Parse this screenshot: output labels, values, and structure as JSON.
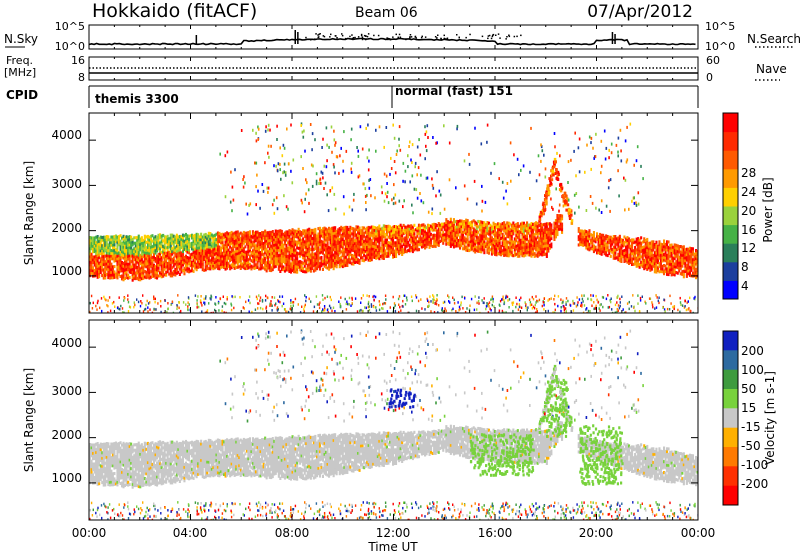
{
  "header": {
    "radar": "Hokkaido (fitACF)",
    "beam": "Beam 06",
    "date": "07/Apr/2012"
  },
  "nsky_panel": {
    "left_label": "N.Sky",
    "right_label": "N.Search",
    "left_ticks": [
      "10^5",
      "10^0"
    ],
    "right_ticks": [
      "10^5",
      "10^0"
    ]
  },
  "freq_panel": {
    "left_label_1": "Freq.",
    "left_label_2": "[MHz]",
    "left_ticks": [
      "16",
      "8"
    ],
    "right_label": "Nave",
    "right_ticks": [
      "60",
      "0"
    ]
  },
  "cpid_panel": {
    "label": "CPID",
    "segments": [
      {
        "start_hour": 0,
        "text": "themis 3300"
      },
      {
        "start_hour": 12,
        "text": "normal (fast) 151"
      }
    ]
  },
  "time_axis": {
    "label": "Time UT",
    "ticks": [
      "00:00",
      "04:00",
      "08:00",
      "12:00",
      "16:00",
      "20:00",
      "00:00"
    ]
  },
  "power_panel": {
    "ylabel": "Slant Range [km]",
    "yticks": [
      "1000",
      "2000",
      "3000",
      "4000"
    ],
    "colorbar_label": "Power [dB]",
    "colorbar_ticks": [
      "28",
      "24",
      "20",
      "16",
      "12",
      "8",
      "4"
    ],
    "colorbar_colors": [
      "#0000ff",
      "#1c3f9e",
      "#2a7f5a",
      "#46b246",
      "#9ad23c",
      "#ffd000",
      "#ff9a00",
      "#ff5a00",
      "#ff2a00",
      "#ff0000"
    ]
  },
  "velocity_panel": {
    "ylabel": "Slant Range [km]",
    "yticks": [
      "1000",
      "2000",
      "3000",
      "4000"
    ],
    "colorbar_label": "Velocity [m s-1]",
    "colorbar_ticks": [
      "200",
      "100",
      "50",
      "15",
      "-15",
      "-50",
      "-100",
      "-200"
    ],
    "colorbar_colors": [
      "#1020c0",
      "#2d6aa0",
      "#3e9b3e",
      "#78d23c",
      "#c8c8c8",
      "#ffb000",
      "#ff7a00",
      "#ff3000",
      "#ff0000"
    ]
  },
  "chart_data": [
    {
      "type": "heatmap",
      "title": "Power [dB]",
      "xlabel": "Time UT",
      "ylabel": "Slant Range [km]",
      "xlim": [
        0,
        24
      ],
      "ylim": [
        180,
        4600
      ],
      "x_unit": "hours UT",
      "zlim": [
        0,
        30
      ],
      "band_main": [
        [
          0,
          1250
        ],
        [
          2,
          1250
        ],
        [
          4,
          1300
        ],
        [
          6,
          1350
        ],
        [
          8,
          1400
        ],
        [
          10,
          1500
        ],
        [
          12,
          1600
        ],
        [
          14,
          1950
        ],
        [
          16,
          1800
        ],
        [
          18,
          1650
        ],
        [
          18.5,
          2200
        ],
        [
          19,
          1900
        ],
        [
          20,
          1700
        ],
        [
          22,
          1450
        ],
        [
          24,
          1250
        ]
      ],
      "band_upper": [
        [
          0,
          1850
        ],
        [
          4,
          1900
        ],
        [
          8,
          2000
        ],
        [
          12,
          2100
        ],
        [
          16,
          2150
        ],
        [
          18,
          2150
        ]
      ],
      "echo_arc": [
        [
          17.7,
          2200
        ],
        [
          18.0,
          2800
        ],
        [
          18.3,
          3500
        ],
        [
          18.6,
          2900
        ],
        [
          19.0,
          2300
        ]
      ]
    },
    {
      "type": "heatmap",
      "title": "Velocity [m s-1]",
      "xlabel": "Time UT",
      "ylabel": "Slant Range [km]",
      "xlim": [
        0,
        24
      ],
      "ylim": [
        180,
        4600
      ],
      "x_unit": "hours UT",
      "zlim": [
        -200,
        200
      ],
      "dominant_value": 0,
      "notable_regions": [
        {
          "t_start": 11.8,
          "t_end": 12.8,
          "range_start": 2700,
          "range_end": 3100,
          "velocity": 200
        },
        {
          "t_start": 15.0,
          "t_end": 17.5,
          "range_start": 1200,
          "range_end": 2100,
          "velocity": 30
        },
        {
          "t_start": 18.0,
          "t_end": 18.8,
          "range_start": 2000,
          "range_end": 3300,
          "velocity": 30
        },
        {
          "t_start": 19.3,
          "t_end": 21.0,
          "range_start": 1000,
          "range_end": 2300,
          "velocity": 30
        }
      ]
    }
  ]
}
